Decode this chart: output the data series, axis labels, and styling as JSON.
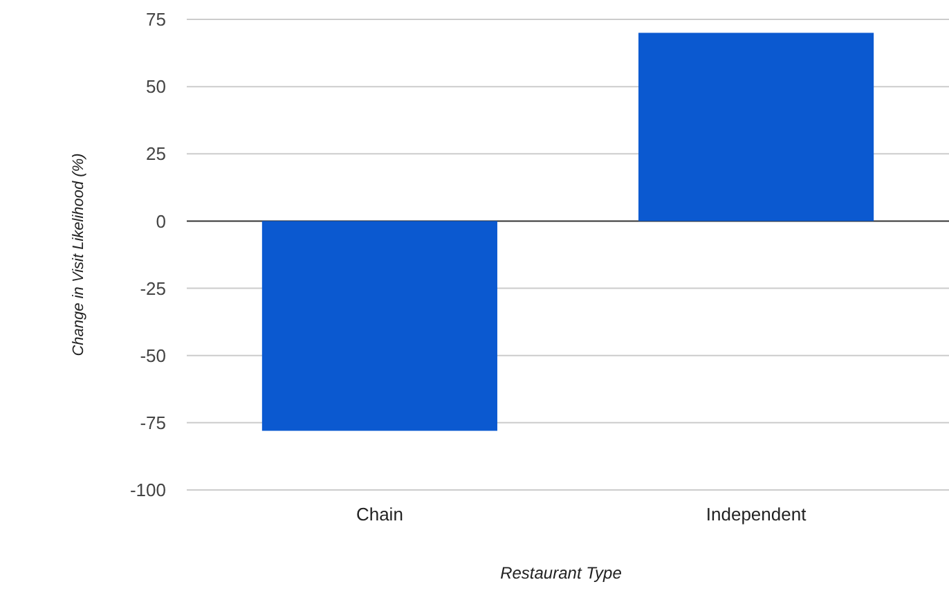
{
  "chart_data": {
    "type": "bar",
    "xlabel": "Restaurant Type",
    "ylabel": "Change in Visit Likelihood (%)",
    "categories": [
      "Chain",
      "Independent"
    ],
    "values": [
      -78,
      70
    ],
    "color": "#0b59d0",
    "ylim": [
      -100,
      75
    ],
    "yticks": [
      -100,
      -75,
      -50,
      -25,
      0,
      25,
      50,
      75
    ],
    "grid": "y"
  }
}
